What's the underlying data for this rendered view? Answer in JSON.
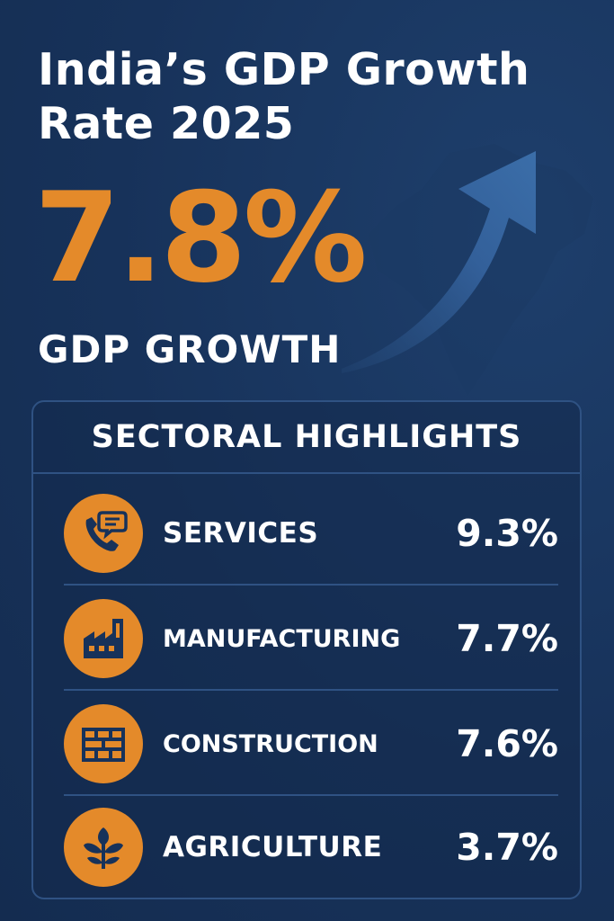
{
  "header": {
    "title": "India’s GDP Growth Rate 2025"
  },
  "headline": {
    "value": "7.8%",
    "label": "GDP GROWTH"
  },
  "colors": {
    "background": "#17325a",
    "accent": "#e48a2a",
    "arrow": "#3a6aa3",
    "text": "#ffffff"
  },
  "sectoral": {
    "heading": "SECTORAL HIGHLIGHTS",
    "items": [
      {
        "name": "SERVICES",
        "value": "9.3%",
        "icon": "phone-chat-icon"
      },
      {
        "name": "MANUFACTURING",
        "value": "7.7%",
        "icon": "factory-icon"
      },
      {
        "name": "CONSTRUCTION",
        "value": "7.6%",
        "icon": "brick-wall-icon"
      },
      {
        "name": "AGRICULTURE",
        "value": "3.7%",
        "icon": "plant-icon"
      }
    ]
  }
}
